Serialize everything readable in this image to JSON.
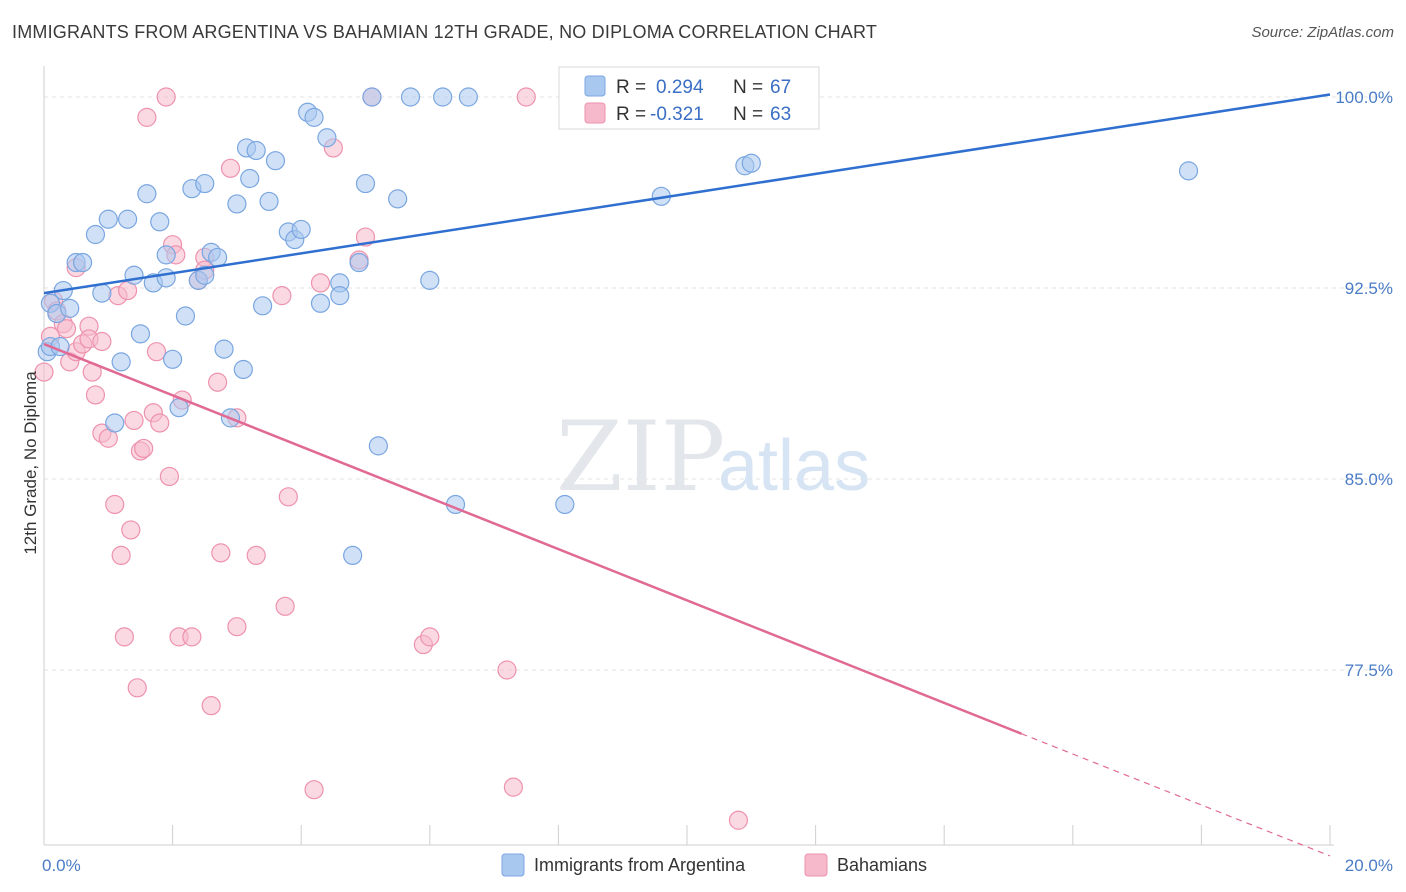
{
  "header": {
    "title": "IMMIGRANTS FROM ARGENTINA VS BAHAMIAN 12TH GRADE, NO DIPLOMA CORRELATION CHART",
    "source": "Source: ZipAtlas.com"
  },
  "watermark": {
    "zip": "ZIP",
    "atlas": "atlas"
  },
  "colors": {
    "blue_fill": "#a9c8f0",
    "blue_stroke": "#7aa6e0",
    "blue_line": "#2f6fcf",
    "pink_fill": "#f6b9cc",
    "pink_stroke": "#ee92ae",
    "pink_line": "#e06a94",
    "grid": "#e3e3e3",
    "tick_label": "#4a7cc6"
  },
  "chart_data": {
    "type": "scatter",
    "ylabel": "12th Grade, No Diploma",
    "xlim": [
      0,
      20
    ],
    "ylim": [
      71.2,
      100.9
    ],
    "x_ticks": [
      0,
      20
    ],
    "x_tick_labels": [
      "0.0%",
      "20.0%"
    ],
    "y_ticks": [
      77.5,
      85.0,
      92.5,
      100.0
    ],
    "y_tick_labels": [
      "77.5%",
      "85.0%",
      "92.5%",
      "100.0%"
    ],
    "grid": true,
    "legend_position": "top-center",
    "stats": [
      {
        "r_label": "R =",
        "r_value": "0.294",
        "n_label": "N =",
        "n_value": "67"
      },
      {
        "r_label": "R =",
        "r_value": "-0.321",
        "n_label": "N =",
        "n_value": "63"
      }
    ],
    "series": [
      {
        "name": "Immigrants from Argentina",
        "color": "blue",
        "trend": {
          "x0": 0,
          "y0": 92.3,
          "x1": 20,
          "y1": 100.1
        },
        "points": [
          [
            0.05,
            90.0
          ],
          [
            0.1,
            90.2
          ],
          [
            0.1,
            91.9
          ],
          [
            0.2,
            91.5
          ],
          [
            0.3,
            92.4
          ],
          [
            0.4,
            91.7
          ],
          [
            0.5,
            93.5
          ],
          [
            0.6,
            93.5
          ],
          [
            0.8,
            94.6
          ],
          [
            0.9,
            92.3
          ],
          [
            1.0,
            95.2
          ],
          [
            1.1,
            87.2
          ],
          [
            1.2,
            89.6
          ],
          [
            1.3,
            95.2
          ],
          [
            1.4,
            93.0
          ],
          [
            1.5,
            90.7
          ],
          [
            1.6,
            96.2
          ],
          [
            1.7,
            92.7
          ],
          [
            1.8,
            95.1
          ],
          [
            1.9,
            93.8
          ],
          [
            2.0,
            89.7
          ],
          [
            2.1,
            87.8
          ],
          [
            2.2,
            91.4
          ],
          [
            2.3,
            96.4
          ],
          [
            2.4,
            92.8
          ],
          [
            2.5,
            96.6
          ],
          [
            2.6,
            93.9
          ],
          [
            2.7,
            93.7
          ],
          [
            2.8,
            90.1
          ],
          [
            2.9,
            87.4
          ],
          [
            3.0,
            95.8
          ],
          [
            3.1,
            89.3
          ],
          [
            3.15,
            98.0
          ],
          [
            3.2,
            96.8
          ],
          [
            3.3,
            97.9
          ],
          [
            3.4,
            91.8
          ],
          [
            3.5,
            95.9
          ],
          [
            3.6,
            97.5
          ],
          [
            3.8,
            94.7
          ],
          [
            3.9,
            94.4
          ],
          [
            4.0,
            94.8
          ],
          [
            4.1,
            99.4
          ],
          [
            4.2,
            99.2
          ],
          [
            4.3,
            91.9
          ],
          [
            4.4,
            98.4
          ],
          [
            4.6,
            92.7
          ],
          [
            4.6,
            92.2
          ],
          [
            4.8,
            82.0
          ],
          [
            4.9,
            93.5
          ],
          [
            5.0,
            96.6
          ],
          [
            5.1,
            100.0
          ],
          [
            5.2,
            86.3
          ],
          [
            5.5,
            96.0
          ],
          [
            5.7,
            100.0
          ],
          [
            6.0,
            92.8
          ],
          [
            6.2,
            100.0
          ],
          [
            6.4,
            84.0
          ],
          [
            6.6,
            100.0
          ],
          [
            8.1,
            84.0
          ],
          [
            8.2,
            100.0
          ],
          [
            9.6,
            96.1
          ],
          [
            10.9,
            97.3
          ],
          [
            11.0,
            97.4
          ],
          [
            17.8,
            97.1
          ],
          [
            0.25,
            90.2
          ],
          [
            1.9,
            92.9
          ],
          [
            2.5,
            93.0
          ]
        ]
      },
      {
        "name": "Bahamians",
        "color": "pink",
        "trend": {
          "x0": 0,
          "y0": 90.3,
          "x1": 15.2,
          "y1": 75.0
        },
        "trend_dashed": {
          "x0": 15.2,
          "y0": 75.0,
          "x1": 20,
          "y1": 70.2
        },
        "points": [
          [
            0.0,
            89.2
          ],
          [
            0.1,
            90.6
          ],
          [
            0.15,
            92.0
          ],
          [
            0.2,
            91.6
          ],
          [
            0.3,
            91.1
          ],
          [
            0.35,
            90.9
          ],
          [
            0.4,
            89.6
          ],
          [
            0.5,
            90.0
          ],
          [
            0.5,
            93.3
          ],
          [
            0.6,
            90.3
          ],
          [
            0.7,
            91.0
          ],
          [
            0.7,
            90.5
          ],
          [
            0.75,
            89.2
          ],
          [
            0.8,
            88.3
          ],
          [
            0.9,
            90.4
          ],
          [
            0.9,
            86.8
          ],
          [
            1.0,
            86.6
          ],
          [
            1.1,
            84.0
          ],
          [
            1.15,
            92.2
          ],
          [
            1.2,
            82.0
          ],
          [
            1.25,
            78.8
          ],
          [
            1.3,
            92.4
          ],
          [
            1.35,
            83.0
          ],
          [
            1.4,
            87.3
          ],
          [
            1.45,
            76.8
          ],
          [
            1.5,
            86.1
          ],
          [
            1.55,
            86.2
          ],
          [
            1.6,
            99.2
          ],
          [
            1.7,
            87.6
          ],
          [
            1.75,
            90.0
          ],
          [
            1.8,
            87.2
          ],
          [
            1.9,
            100.0
          ],
          [
            1.95,
            85.1
          ],
          [
            2.0,
            94.2
          ],
          [
            2.05,
            93.8
          ],
          [
            2.1,
            78.8
          ],
          [
            2.15,
            88.1
          ],
          [
            2.3,
            78.8
          ],
          [
            2.4,
            92.8
          ],
          [
            2.5,
            93.7
          ],
          [
            2.5,
            93.2
          ],
          [
            2.6,
            76.1
          ],
          [
            2.7,
            88.8
          ],
          [
            2.75,
            82.1
          ],
          [
            2.9,
            97.2
          ],
          [
            3.0,
            79.2
          ],
          [
            3.0,
            87.4
          ],
          [
            3.3,
            82.0
          ],
          [
            3.7,
            92.2
          ],
          [
            3.75,
            80.0
          ],
          [
            3.8,
            84.3
          ],
          [
            4.2,
            72.8
          ],
          [
            4.3,
            92.7
          ],
          [
            4.5,
            98.0
          ],
          [
            4.9,
            93.6
          ],
          [
            5.0,
            94.5
          ],
          [
            5.1,
            100.0
          ],
          [
            5.9,
            78.5
          ],
          [
            6.0,
            78.8
          ],
          [
            7.2,
            77.5
          ],
          [
            7.3,
            72.9
          ],
          [
            7.5,
            100.0
          ],
          [
            10.8,
            71.6
          ]
        ]
      }
    ]
  }
}
